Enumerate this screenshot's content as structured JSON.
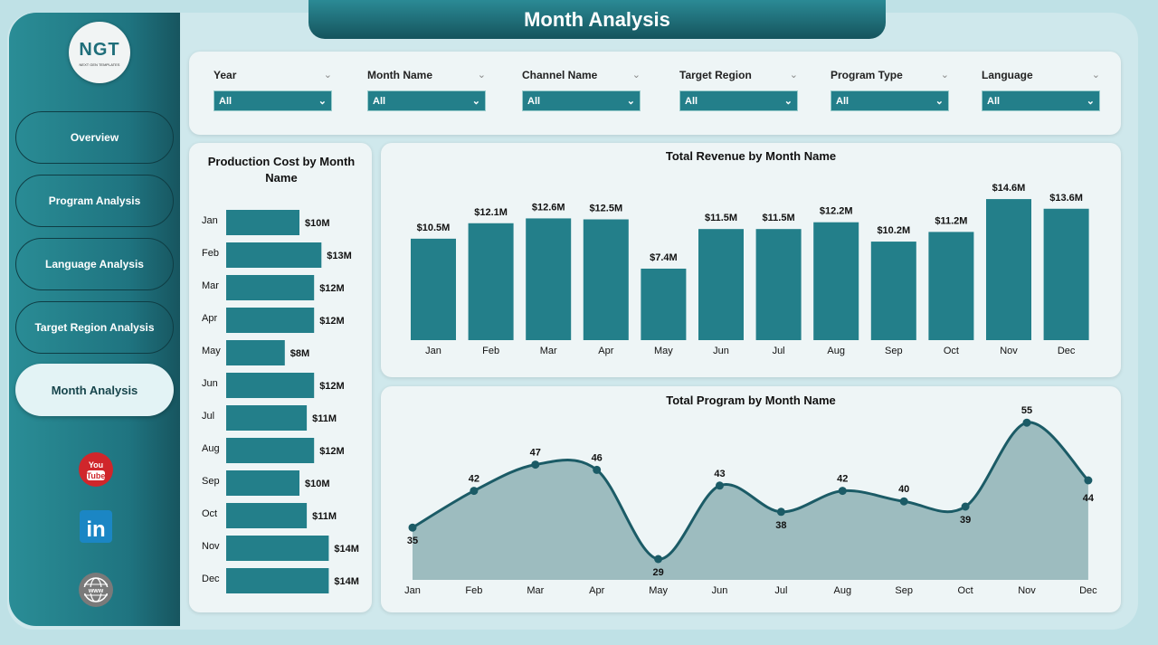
{
  "header": {
    "title": "Month Analysis"
  },
  "logo": {
    "text": "NGT",
    "subtext": "NEXT GEN TEMPLATES"
  },
  "nav": [
    {
      "label": "Overview"
    },
    {
      "label": "Program Analysis"
    },
    {
      "label": "Language Analysis"
    },
    {
      "label": "Target Region Analysis"
    },
    {
      "label": "Month Analysis",
      "active": true
    }
  ],
  "social": [
    "youtube-icon",
    "linkedin-icon",
    "globe-icon"
  ],
  "filters": [
    {
      "label": "Year",
      "value": "All"
    },
    {
      "label": "Month Name",
      "value": "All"
    },
    {
      "label": "Channel Name",
      "value": "All"
    },
    {
      "label": "Target Region",
      "value": "All"
    },
    {
      "label": "Program Type",
      "value": "All"
    },
    {
      "label": "Language",
      "value": "All"
    }
  ],
  "colors": {
    "bar": "#237f8a",
    "line": "#1b5b66",
    "area": "#9dbcbf",
    "sidebar": "#1f7480"
  },
  "chart_data": [
    {
      "type": "bar",
      "orientation": "horizontal",
      "title": "Production Cost by Month Name",
      "categories": [
        "Jan",
        "Feb",
        "Mar",
        "Apr",
        "May",
        "Jun",
        "Jul",
        "Aug",
        "Sep",
        "Oct",
        "Nov",
        "Dec"
      ],
      "values": [
        10,
        13,
        12,
        12,
        8,
        12,
        11,
        12,
        10,
        11,
        14,
        14
      ],
      "labels": [
        "$10M",
        "$13M",
        "$12M",
        "$12M",
        "$8M",
        "$12M",
        "$11M",
        "$12M",
        "$10M",
        "$11M",
        "$14M",
        "$14M"
      ],
      "unit": "$M"
    },
    {
      "type": "bar",
      "title": "Total Revenue by Month Name",
      "categories": [
        "Jan",
        "Feb",
        "Mar",
        "Apr",
        "May",
        "Jun",
        "Jul",
        "Aug",
        "Sep",
        "Oct",
        "Nov",
        "Dec"
      ],
      "values": [
        10.5,
        12.1,
        12.6,
        12.5,
        7.4,
        11.5,
        11.5,
        12.2,
        10.2,
        11.2,
        14.6,
        13.6
      ],
      "labels": [
        "$10.5M",
        "$12.1M",
        "$12.6M",
        "$12.5M",
        "$7.4M",
        "$11.5M",
        "$11.5M",
        "$12.2M",
        "$10.2M",
        "$11.2M",
        "$14.6M",
        "$13.6M"
      ],
      "unit": "$M"
    },
    {
      "type": "area",
      "title": "Total Program by Month Name",
      "categories": [
        "Jan",
        "Feb",
        "Mar",
        "Apr",
        "May",
        "Jun",
        "Jul",
        "Aug",
        "Sep",
        "Oct",
        "Nov",
        "Dec"
      ],
      "values": [
        35,
        42,
        47,
        46,
        29,
        43,
        38,
        42,
        40,
        39,
        55,
        44
      ]
    }
  ]
}
